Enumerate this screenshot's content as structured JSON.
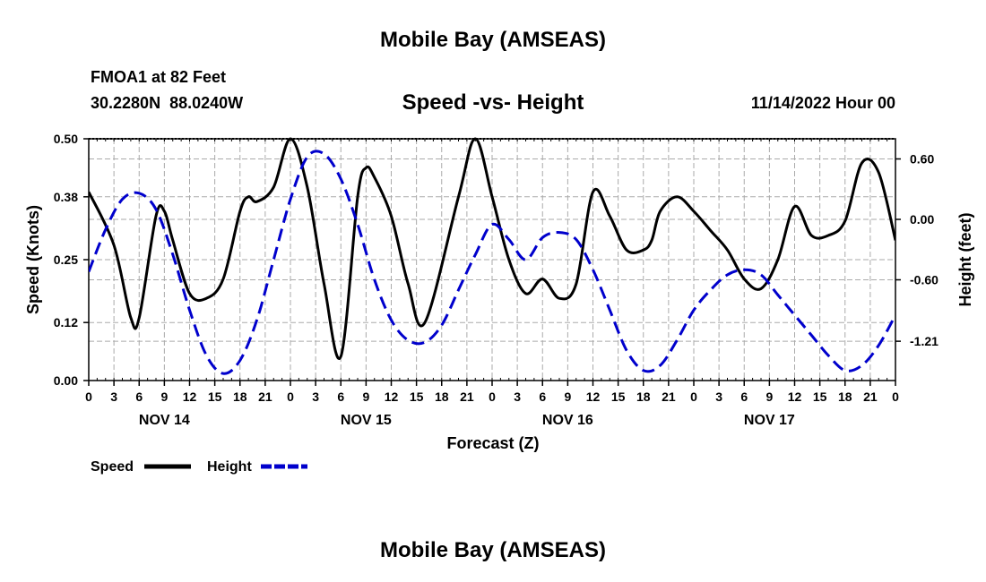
{
  "header": {
    "title": "Mobile Bay (AMSEAS)",
    "station": "FMOA1 at 82 Feet",
    "coords": "30.2280N  88.0240W",
    "subtitle": "Speed -vs- Height",
    "datetime": "11/14/2022 Hour 00"
  },
  "footer": {
    "title": "Mobile Bay (AMSEAS)"
  },
  "colors": {
    "speed": "#000000",
    "height": "#0000cc",
    "grid": "#aaaaaa"
  },
  "chart_data": {
    "type": "line",
    "title": "Speed -vs- Height",
    "xlabel": "Forecast (Z)",
    "ylabel": "Speed (Knots)",
    "y2label": "Height (feet)",
    "x_unit": "forecast hours from 11/14/2022 00Z",
    "xlim": [
      0,
      96
    ],
    "ylim": [
      0,
      0.5
    ],
    "y2lim": [
      -1.6,
      0.8
    ],
    "x_ticks": [
      0,
      3,
      6,
      9,
      12,
      15,
      18,
      21,
      24,
      27,
      30,
      33,
      36,
      39,
      42,
      45,
      48,
      51,
      54,
      57,
      60,
      63,
      66,
      69,
      72,
      75,
      78,
      81,
      84,
      87,
      90,
      93,
      96
    ],
    "x_tick_labels": [
      "0",
      "3",
      "6",
      "9",
      "12",
      "15",
      "18",
      "21",
      "0",
      "3",
      "6",
      "9",
      "12",
      "15",
      "18",
      "21",
      "0",
      "3",
      "6",
      "9",
      "12",
      "15",
      "18",
      "21",
      "0",
      "3",
      "6",
      "9",
      "12",
      "15",
      "18",
      "21",
      "0"
    ],
    "date_labels": [
      {
        "x": 9,
        "label": "NOV 14"
      },
      {
        "x": 33,
        "label": "NOV 15"
      },
      {
        "x": 57,
        "label": "NOV 16"
      },
      {
        "x": 81,
        "label": "NOV 17"
      }
    ],
    "y_ticks": [
      0.0,
      0.12,
      0.25,
      0.38,
      0.5
    ],
    "y_tick_labels": [
      "0.00",
      "0.12",
      "0.25",
      "0.38",
      "0.50"
    ],
    "y2_ticks": [
      0.6,
      0.0,
      -0.6,
      -1.21
    ],
    "y2_tick_labels": [
      "0.60",
      "0.00",
      "-0.60",
      "-1.21"
    ],
    "legend": [
      {
        "label": "Speed",
        "style": "solid"
      },
      {
        "label": "Height",
        "style": "dashed"
      }
    ],
    "series": [
      {
        "name": "Speed",
        "axis": "left",
        "style": "solid",
        "x": [
          0,
          3,
          5,
          6,
          8,
          9,
          10,
          12,
          14,
          16,
          18,
          19,
          20,
          22,
          24,
          26,
          28,
          30,
          32,
          33,
          34,
          36,
          38,
          40,
          44,
          46,
          48,
          50,
          52,
          54,
          56,
          58,
          60,
          62,
          64,
          66,
          67,
          68,
          70,
          72,
          74,
          76,
          78,
          80,
          82,
          84,
          86,
          88,
          90,
          92,
          94,
          96
        ],
        "values": [
          0.39,
          0.28,
          0.13,
          0.13,
          0.34,
          0.35,
          0.29,
          0.18,
          0.17,
          0.21,
          0.35,
          0.38,
          0.37,
          0.4,
          0.5,
          0.4,
          0.2,
          0.05,
          0.38,
          0.44,
          0.42,
          0.34,
          0.2,
          0.12,
          0.38,
          0.5,
          0.38,
          0.25,
          0.18,
          0.21,
          0.17,
          0.2,
          0.39,
          0.34,
          0.27,
          0.27,
          0.29,
          0.35,
          0.38,
          0.35,
          0.31,
          0.27,
          0.21,
          0.19,
          0.25,
          0.36,
          0.3,
          0.3,
          0.33,
          0.45,
          0.43,
          0.29
        ]
      },
      {
        "name": "Height",
        "axis": "right",
        "style": "dashed",
        "x": [
          0,
          2,
          4,
          6,
          8,
          10,
          12,
          14,
          16,
          18,
          20,
          22,
          24,
          26,
          28,
          30,
          32,
          34,
          36,
          38,
          40,
          42,
          44,
          46,
          48,
          50,
          52,
          54,
          56,
          58,
          60,
          62,
          64,
          66,
          68,
          70,
          72,
          74,
          76,
          78,
          80,
          82,
          84,
          86,
          88,
          90,
          92,
          94,
          96
        ],
        "values": [
          -0.52,
          -0.1,
          0.2,
          0.26,
          0.1,
          -0.35,
          -0.9,
          -1.35,
          -1.53,
          -1.4,
          -1.0,
          -0.4,
          0.2,
          0.62,
          0.65,
          0.4,
          -0.05,
          -0.6,
          -1.0,
          -1.2,
          -1.22,
          -1.05,
          -0.7,
          -0.35,
          -0.05,
          -0.2,
          -0.4,
          -0.18,
          -0.13,
          -0.2,
          -0.5,
          -0.9,
          -1.3,
          -1.5,
          -1.45,
          -1.2,
          -0.9,
          -0.7,
          -0.55,
          -0.5,
          -0.55,
          -0.75,
          -0.95,
          -1.15,
          -1.35,
          -1.5,
          -1.45,
          -1.25,
          -0.95
        ]
      }
    ]
  }
}
